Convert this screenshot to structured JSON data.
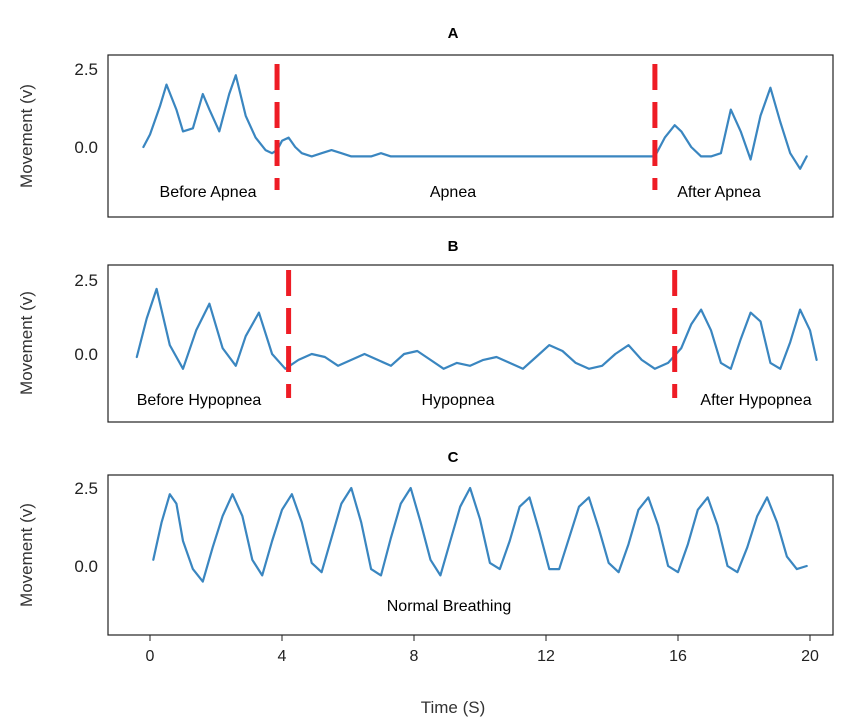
{
  "chart_data": [
    {
      "type": "line",
      "title": "A",
      "ylabel": "Movement (v)",
      "yticks": [
        "2.5",
        "0.0"
      ],
      "ylim": [
        -2.2,
        2.7
      ],
      "xlim": [
        -0.4,
        20.2
      ],
      "annotations": [
        "Before Apnea",
        "Apnea",
        "After Apnea"
      ],
      "dividers_x": [
        3.85,
        15.3
      ],
      "series": [
        {
          "x": [
            -0.2,
            0.0,
            0.3,
            0.5,
            0.8,
            1.0,
            1.3,
            1.6,
            1.8,
            2.1,
            2.4,
            2.6,
            2.9,
            3.2,
            3.5,
            3.7,
            3.85,
            4.0,
            4.2,
            4.4,
            4.6,
            4.9,
            5.2,
            5.5,
            5.8,
            6.1,
            6.4,
            6.7,
            7.0,
            7.3,
            7.6,
            8.0,
            8.5,
            9.0,
            10.0,
            11.0,
            12.0,
            13.0,
            14.0,
            15.0,
            15.3,
            15.6,
            15.9,
            16.1,
            16.4,
            16.7,
            17.0,
            17.3,
            17.6,
            17.9,
            18.2,
            18.5,
            18.8,
            19.1,
            19.4,
            19.7,
            19.9
          ],
          "y": [
            0.0,
            0.4,
            1.3,
            2.0,
            1.2,
            0.5,
            0.6,
            1.7,
            1.2,
            0.5,
            1.7,
            2.3,
            1.0,
            0.3,
            -0.1,
            -0.2,
            -0.1,
            0.2,
            0.3,
            0.0,
            -0.2,
            -0.3,
            -0.2,
            -0.1,
            -0.2,
            -0.3,
            -0.3,
            -0.3,
            -0.2,
            -0.3,
            -0.3,
            -0.3,
            -0.3,
            -0.3,
            -0.3,
            -0.3,
            -0.3,
            -0.3,
            -0.3,
            -0.3,
            -0.3,
            0.3,
            0.7,
            0.5,
            0.0,
            -0.3,
            -0.3,
            -0.2,
            1.2,
            0.5,
            -0.4,
            1.0,
            1.9,
            0.8,
            -0.2,
            -0.7,
            -0.3
          ]
        }
      ]
    },
    {
      "type": "line",
      "title": "B",
      "ylabel": "Movement (v)",
      "yticks": [
        "2.5",
        "0.0"
      ],
      "ylim": [
        -2.0,
        2.7
      ],
      "xlim": [
        -0.4,
        20.2
      ],
      "annotations": [
        "Before Hypopnea",
        "Hypopnea",
        "After Hypopnea"
      ],
      "dividers_x": [
        4.2,
        15.9
      ],
      "series": [
        {
          "x": [
            -0.4,
            -0.1,
            0.2,
            0.6,
            1.0,
            1.4,
            1.8,
            2.2,
            2.6,
            2.9,
            3.3,
            3.7,
            4.1,
            4.5,
            4.9,
            5.3,
            5.7,
            6.1,
            6.5,
            6.9,
            7.3,
            7.7,
            8.1,
            8.5,
            8.9,
            9.3,
            9.7,
            10.1,
            10.5,
            10.9,
            11.3,
            11.7,
            12.1,
            12.5,
            12.9,
            13.3,
            13.7,
            14.1,
            14.5,
            14.9,
            15.3,
            15.7,
            16.1,
            16.4,
            16.7,
            17.0,
            17.3,
            17.6,
            17.9,
            18.2,
            18.5,
            18.8,
            19.1,
            19.4,
            19.7,
            20.0,
            20.2
          ],
          "y": [
            -0.1,
            1.2,
            2.2,
            0.3,
            -0.5,
            0.8,
            1.7,
            0.2,
            -0.4,
            0.6,
            1.4,
            0.0,
            -0.5,
            -0.2,
            0.0,
            -0.1,
            -0.4,
            -0.2,
            0.0,
            -0.2,
            -0.4,
            0.0,
            0.1,
            -0.2,
            -0.5,
            -0.3,
            -0.4,
            -0.2,
            -0.1,
            -0.3,
            -0.5,
            -0.1,
            0.3,
            0.1,
            -0.3,
            -0.5,
            -0.4,
            0.0,
            0.3,
            -0.2,
            -0.5,
            -0.3,
            0.2,
            1.0,
            1.5,
            0.8,
            -0.3,
            -0.5,
            0.5,
            1.4,
            1.1,
            -0.3,
            -0.5,
            0.4,
            1.5,
            0.8,
            -0.2
          ]
        }
      ]
    },
    {
      "type": "line",
      "title": "C",
      "ylabel": "Movement (v)",
      "yticks": [
        "2.5",
        "0.0"
      ],
      "ylim": [
        -1.9,
        2.9
      ],
      "xlim": [
        -0.4,
        20.2
      ],
      "xticks": [
        0,
        4,
        8,
        12,
        16,
        20
      ],
      "xlabel": "Time (S)",
      "annotations": [
        "Normal Breathing"
      ],
      "series": [
        {
          "x": [
            0.1,
            0.35,
            0.6,
            0.8,
            1.0,
            1.3,
            1.6,
            1.9,
            2.2,
            2.5,
            2.8,
            3.1,
            3.4,
            3.7,
            4.0,
            4.3,
            4.6,
            4.9,
            5.2,
            5.5,
            5.8,
            6.1,
            6.4,
            6.7,
            7.0,
            7.3,
            7.6,
            7.9,
            8.2,
            8.5,
            8.8,
            9.1,
            9.4,
            9.7,
            10.0,
            10.3,
            10.6,
            10.9,
            11.2,
            11.5,
            11.8,
            12.1,
            12.4,
            12.7,
            13.0,
            13.3,
            13.6,
            13.9,
            14.2,
            14.5,
            14.8,
            15.1,
            15.4,
            15.7,
            16.0,
            16.3,
            16.6,
            16.9,
            17.2,
            17.5,
            17.8,
            18.1,
            18.4,
            18.7,
            19.0,
            19.3,
            19.6,
            19.9
          ],
          "y": [
            0.2,
            1.4,
            2.3,
            2.0,
            0.8,
            -0.1,
            -0.5,
            0.6,
            1.6,
            2.3,
            1.6,
            0.2,
            -0.3,
            0.8,
            1.8,
            2.3,
            1.4,
            0.1,
            -0.2,
            0.9,
            2.0,
            2.5,
            1.4,
            -0.1,
            -0.3,
            0.9,
            2.0,
            2.5,
            1.4,
            0.2,
            -0.3,
            0.8,
            1.9,
            2.5,
            1.5,
            0.1,
            -0.1,
            0.8,
            1.9,
            2.2,
            1.1,
            -0.1,
            -0.1,
            0.9,
            1.9,
            2.2,
            1.2,
            0.1,
            -0.2,
            0.7,
            1.8,
            2.2,
            1.3,
            0.0,
            -0.2,
            0.7,
            1.8,
            2.2,
            1.3,
            0.0,
            -0.2,
            0.6,
            1.6,
            2.2,
            1.4,
            0.3,
            -0.1,
            0.0
          ]
        }
      ]
    }
  ],
  "colors": {
    "trace": "#3a86c0",
    "divider": "#ee1c25"
  }
}
